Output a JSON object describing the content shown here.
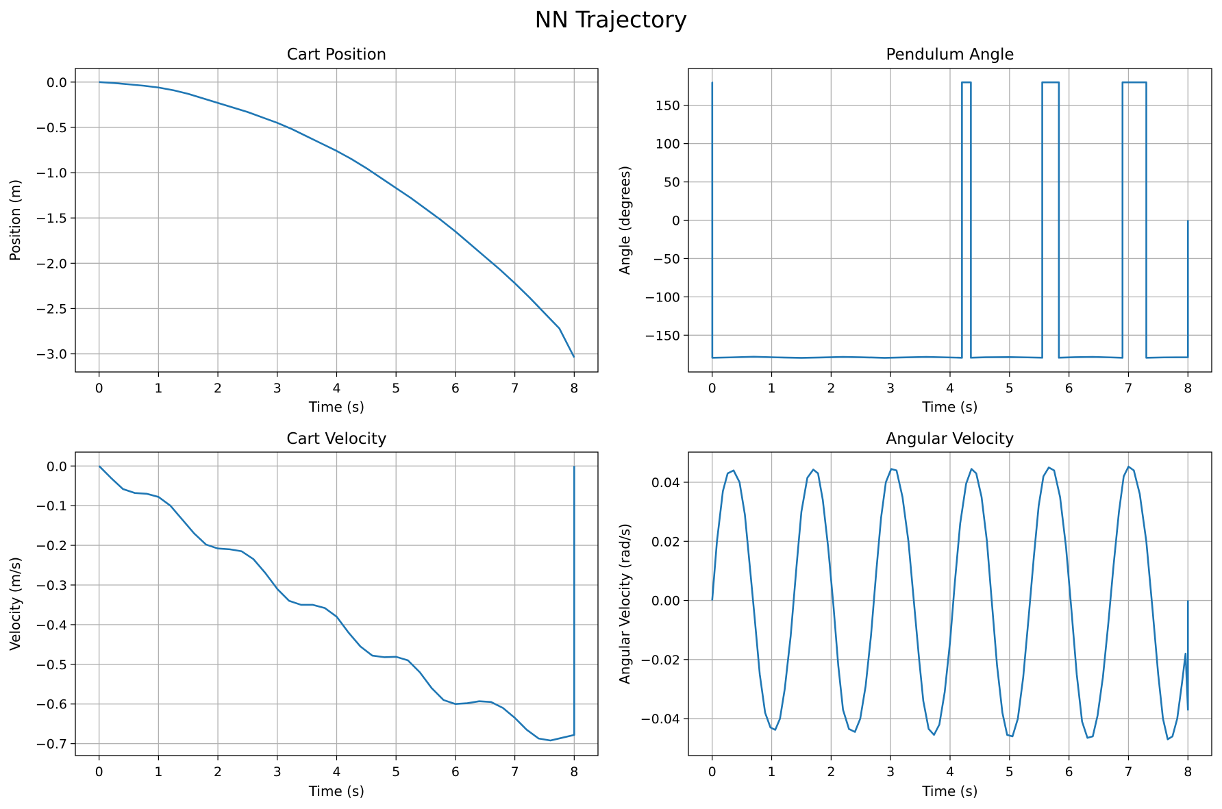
{
  "figure": {
    "title": "NN Trajectory"
  },
  "colors": {
    "series": "#1f77b4",
    "grid": "#b0b0b0",
    "axes": "#000000"
  },
  "chart_data": [
    {
      "id": "cart-position",
      "type": "line",
      "title": "Cart Position",
      "xlabel": "Time (s)",
      "ylabel": "Position (m)",
      "xlim": [
        -0.4,
        8.4
      ],
      "ylim": [
        -3.2,
        0.15
      ],
      "xticks": [
        0,
        1,
        2,
        3,
        4,
        5,
        6,
        7,
        8
      ],
      "xtick_labels": [
        "0",
        "1",
        "2",
        "3",
        "4",
        "5",
        "6",
        "7",
        "8"
      ],
      "yticks": [
        0.0,
        -0.5,
        -1.0,
        -1.5,
        -2.0,
        -2.5,
        -3.0
      ],
      "ytick_labels": [
        "0.0",
        "−0.5",
        "−1.0",
        "−1.5",
        "−2.0",
        "−2.5",
        "−3.0"
      ],
      "grid": true,
      "x": [
        0,
        0.25,
        0.5,
        0.75,
        1.0,
        1.25,
        1.5,
        1.75,
        2.0,
        2.25,
        2.5,
        2.75,
        3.0,
        3.25,
        3.5,
        3.75,
        4.0,
        4.25,
        4.5,
        4.75,
        5.0,
        5.25,
        5.5,
        5.75,
        6.0,
        6.25,
        6.5,
        6.75,
        7.0,
        7.25,
        7.5,
        7.75,
        8.0
      ],
      "series": [
        {
          "values": [
            0.0,
            -0.01,
            -0.025,
            -0.04,
            -0.06,
            -0.09,
            -0.13,
            -0.18,
            -0.23,
            -0.28,
            -0.33,
            -0.39,
            -0.45,
            -0.52,
            -0.6,
            -0.68,
            -0.76,
            -0.85,
            -0.95,
            -1.06,
            -1.17,
            -1.28,
            -1.4,
            -1.52,
            -1.65,
            -1.79,
            -1.93,
            -2.07,
            -2.22,
            -2.38,
            -2.55,
            -2.72,
            -3.04
          ]
        }
      ]
    },
    {
      "id": "pendulum-angle",
      "type": "line",
      "title": "Pendulum Angle",
      "xlabel": "Time (s)",
      "ylabel": "Angle (degrees)",
      "xlim": [
        -0.4,
        8.4
      ],
      "ylim": [
        -198,
        198
      ],
      "xticks": [
        0,
        1,
        2,
        3,
        4,
        5,
        6,
        7,
        8
      ],
      "xtick_labels": [
        "0",
        "1",
        "2",
        "3",
        "4",
        "5",
        "6",
        "7",
        "8"
      ],
      "yticks": [
        150,
        100,
        50,
        0,
        -50,
        -100,
        -150
      ],
      "ytick_labels": [
        "150",
        "100",
        "50",
        "0",
        "−50",
        "−100",
        "−150"
      ],
      "grid": true,
      "x": [
        0,
        0.001,
        0.002,
        0.3,
        0.7,
        1.1,
        1.5,
        1.8,
        2.2,
        2.5,
        2.9,
        3.2,
        3.6,
        3.9,
        4.2,
        4.2,
        4.35,
        4.35,
        4.6,
        5.0,
        5.3,
        5.55,
        5.55,
        5.83,
        5.83,
        6.1,
        6.4,
        6.7,
        6.9,
        6.9,
        7.3,
        7.3,
        7.6,
        8.0,
        8.0
      ],
      "series": [
        {
          "values": [
            180,
            180,
            -179.5,
            -179.0,
            -178.2,
            -179.0,
            -179.6,
            -179.2,
            -178.4,
            -178.8,
            -179.6,
            -179.1,
            -178.4,
            -178.9,
            -179.5,
            180,
            180,
            -179.4,
            -178.8,
            -178.6,
            -179.0,
            -179.4,
            180,
            180,
            -179.4,
            -178.7,
            -178.4,
            -179.0,
            -179.5,
            180,
            180,
            -179.5,
            -179.0,
            -178.8,
            0
          ]
        }
      ]
    },
    {
      "id": "cart-velocity",
      "type": "line",
      "title": "Cart Velocity",
      "xlabel": "Time (s)",
      "ylabel": "Velocity (m/s)",
      "xlim": [
        -0.4,
        8.4
      ],
      "ylim": [
        -0.73,
        0.035
      ],
      "xticks": [
        0,
        1,
        2,
        3,
        4,
        5,
        6,
        7,
        8
      ],
      "xtick_labels": [
        "0",
        "1",
        "2",
        "3",
        "4",
        "5",
        "6",
        "7",
        "8"
      ],
      "yticks": [
        0.0,
        -0.1,
        -0.2,
        -0.3,
        -0.4,
        -0.5,
        -0.6,
        -0.7
      ],
      "ytick_labels": [
        "0.0",
        "−0.1",
        "−0.2",
        "−0.3",
        "−0.4",
        "−0.5",
        "−0.6",
        "−0.7"
      ],
      "grid": true,
      "x": [
        0,
        0.2,
        0.4,
        0.6,
        0.8,
        1.0,
        1.2,
        1.4,
        1.6,
        1.8,
        2.0,
        2.2,
        2.4,
        2.6,
        2.8,
        3.0,
        3.2,
        3.4,
        3.6,
        3.8,
        4.0,
        4.2,
        4.4,
        4.6,
        4.8,
        5.0,
        5.2,
        5.4,
        5.6,
        5.8,
        6.0,
        6.2,
        6.4,
        6.6,
        6.8,
        7.0,
        7.2,
        7.4,
        7.6,
        7.8,
        8.0,
        8.0
      ],
      "series": [
        {
          "values": [
            0.0,
            -0.03,
            -0.058,
            -0.068,
            -0.07,
            -0.078,
            -0.1,
            -0.135,
            -0.17,
            -0.198,
            -0.208,
            -0.21,
            -0.215,
            -0.235,
            -0.27,
            -0.31,
            -0.34,
            -0.35,
            -0.35,
            -0.358,
            -0.38,
            -0.42,
            -0.455,
            -0.478,
            -0.482,
            -0.481,
            -0.49,
            -0.52,
            -0.56,
            -0.59,
            -0.6,
            -0.598,
            -0.593,
            -0.595,
            -0.61,
            -0.635,
            -0.665,
            -0.687,
            -0.692,
            -0.685,
            -0.678,
            0.0
          ]
        }
      ]
    },
    {
      "id": "angular-velocity",
      "type": "line",
      "title": "Angular Velocity",
      "xlabel": "Time (s)",
      "ylabel": "Angular Velocity (rad/s)",
      "xlim": [
        -0.4,
        8.4
      ],
      "ylim": [
        -0.0525,
        0.0502
      ],
      "xticks": [
        0,
        1,
        2,
        3,
        4,
        5,
        6,
        7,
        8
      ],
      "xtick_labels": [
        "0",
        "1",
        "2",
        "3",
        "4",
        "5",
        "6",
        "7",
        "8"
      ],
      "yticks": [
        0.04,
        0.02,
        0.0,
        -0.02,
        -0.04
      ],
      "ytick_labels": [
        "0.04",
        "0.02",
        "0.00",
        "−0.02",
        "−0.04"
      ],
      "grid": true,
      "x": [
        0,
        0.08,
        0.18,
        0.26,
        0.36,
        0.46,
        0.55,
        0.64,
        0.71,
        0.8,
        0.89,
        0.98,
        1.06,
        1.14,
        1.22,
        1.32,
        1.42,
        1.5,
        1.6,
        1.7,
        1.78,
        1.86,
        1.95,
        2.04,
        2.12,
        2.2,
        2.3,
        2.4,
        2.49,
        2.58,
        2.67,
        2.76,
        2.84,
        2.92,
        3.01,
        3.1,
        3.2,
        3.3,
        3.39,
        3.48,
        3.55,
        3.64,
        3.73,
        3.82,
        3.91,
        4.0,
        4.08,
        4.17,
        4.27,
        4.36,
        4.44,
        4.53,
        4.62,
        4.7,
        4.79,
        4.88,
        4.96,
        5.05,
        5.14,
        5.23,
        5.32,
        5.41,
        5.49,
        5.57,
        5.66,
        5.75,
        5.85,
        5.95,
        6.04,
        6.13,
        6.22,
        6.31,
        6.4,
        6.48,
        6.57,
        6.66,
        6.75,
        6.84,
        6.92,
        7.0,
        7.09,
        7.19,
        7.3,
        7.4,
        7.5,
        7.58,
        7.66,
        7.74,
        7.82,
        7.9,
        7.96,
        8.0,
        8.0
      ],
      "series": [
        {
          "values": [
            0.0,
            0.02,
            0.037,
            0.043,
            0.044,
            0.04,
            0.029,
            0.01,
            -0.005,
            -0.025,
            -0.038,
            -0.043,
            -0.0438,
            -0.04,
            -0.03,
            -0.012,
            0.012,
            0.03,
            0.0415,
            0.0443,
            0.043,
            0.034,
            0.018,
            -0.002,
            -0.022,
            -0.037,
            -0.0435,
            -0.0445,
            -0.04,
            -0.029,
            -0.012,
            0.01,
            0.028,
            0.04,
            0.0445,
            0.044,
            0.035,
            0.02,
            0.0,
            -0.02,
            -0.034,
            -0.0435,
            -0.0455,
            -0.042,
            -0.031,
            -0.014,
            0.006,
            0.026,
            0.0395,
            0.0445,
            0.043,
            0.035,
            0.02,
            0.0,
            -0.022,
            -0.038,
            -0.0455,
            -0.046,
            -0.04,
            -0.026,
            -0.006,
            0.015,
            0.032,
            0.042,
            0.045,
            0.044,
            0.035,
            0.018,
            -0.003,
            -0.025,
            -0.041,
            -0.0465,
            -0.046,
            -0.039,
            -0.026,
            -0.008,
            0.012,
            0.03,
            0.042,
            0.0453,
            0.044,
            0.036,
            0.02,
            -0.002,
            -0.025,
            -0.04,
            -0.047,
            -0.046,
            -0.04,
            -0.028,
            -0.018,
            -0.037,
            0.0
          ]
        }
      ]
    }
  ]
}
